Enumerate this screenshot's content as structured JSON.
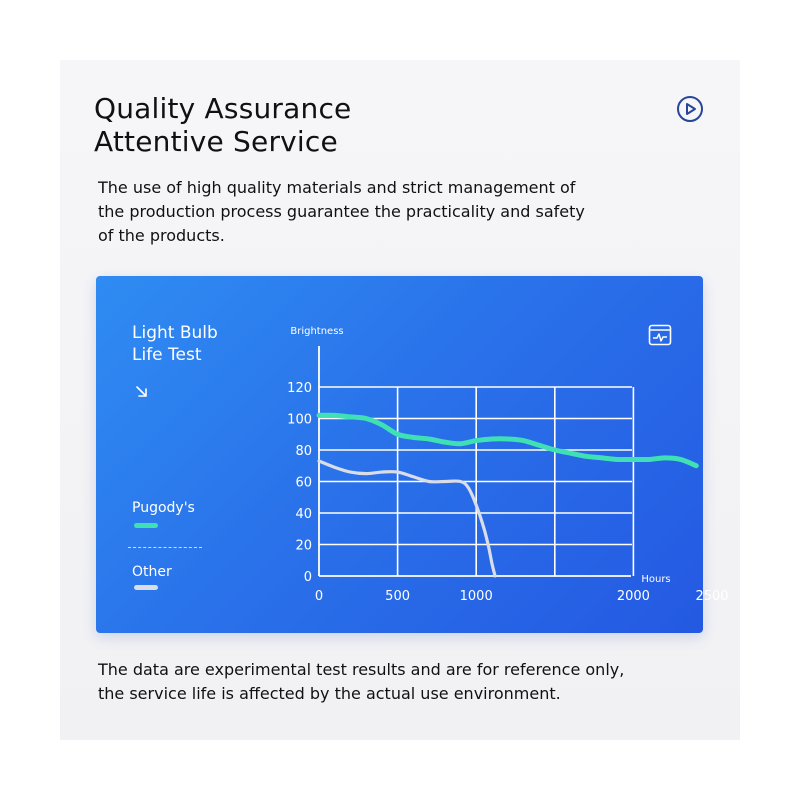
{
  "heading": {
    "line1": "Quality Assurance",
    "line2": "Attentive Service"
  },
  "intro": {
    "line1": "The use of high quality materials and strict management of",
    "line2": "the production process guarantee the practicality and safety",
    "line3": "of the products."
  },
  "icons": {
    "play": "play-circle-icon",
    "arrow": "arrow-down-right-icon",
    "monitor": "monitor-pulse-icon"
  },
  "panel": {
    "title_line1": "Light Bulb",
    "title_line2": "Life Test"
  },
  "footer": {
    "line1": "The data are experimental test results and are for reference only,",
    "line2": "the service life is affected by the actual use environment."
  },
  "colors": {
    "panel": "#2a72ea",
    "pugody": "#3ee0b4",
    "other": "#d8dde8",
    "grid": "#ffffff"
  },
  "chart_data": {
    "type": "line",
    "xlabel": "Hours",
    "ylabel": "Brightness",
    "xlim": [
      0,
      2500
    ],
    "ylim": [
      0,
      120
    ],
    "x_ticks": [
      0,
      500,
      1000,
      2000,
      2500
    ],
    "x_grid": [
      0,
      500,
      1000,
      1500,
      2000
    ],
    "y_ticks": [
      0,
      20,
      40,
      60,
      80,
      100,
      120
    ],
    "grid": true,
    "legend_position": "left",
    "series": [
      {
        "name": "Pugody's",
        "color": "#3ee0b4",
        "x": [
          0,
          100,
          200,
          300,
          400,
          500,
          600,
          700,
          800,
          900,
          1000,
          1100,
          1200,
          1300,
          1400,
          1500,
          1600,
          1700,
          1800,
          1900,
          2000,
          2100,
          2200,
          2300,
          2400
        ],
        "y": [
          102,
          102,
          101,
          100,
          96,
          90,
          88,
          87,
          85,
          84,
          86,
          87,
          87,
          86,
          83,
          80,
          78,
          76,
          75,
          74,
          74,
          74,
          75,
          74,
          70
        ]
      },
      {
        "name": "Other",
        "color": "#d8dde8",
        "x": [
          0,
          100,
          200,
          300,
          400,
          500,
          600,
          700,
          800,
          900,
          950,
          1000,
          1050,
          1080,
          1100,
          1120
        ],
        "y": [
          73,
          69,
          66,
          65,
          66,
          66,
          63,
          60,
          60,
          60,
          56,
          45,
          30,
          18,
          8,
          0
        ]
      }
    ]
  }
}
